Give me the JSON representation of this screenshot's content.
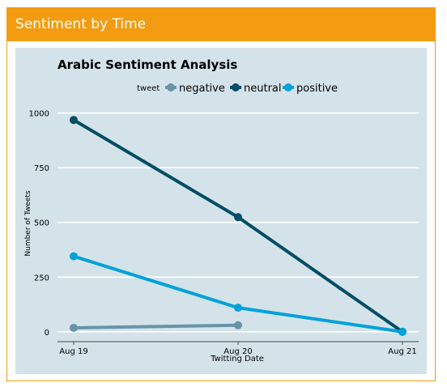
{
  "panel": {
    "title": "Sentiment by Time"
  },
  "colors": {
    "header_bg": "#f39c12",
    "plot_bg": "#d4e3ea",
    "grid": "#ffffff",
    "negative": "#6794a9",
    "neutral": "#014d64",
    "positive": "#01a2d9"
  },
  "chart_data": {
    "type": "line",
    "title": "Arabic Sentiment Analysis",
    "xlabel": "Twitting Date",
    "ylabel": "Number of Tweets",
    "legend_title": "tweet",
    "legend_position": "top",
    "grid": true,
    "categories": [
      "Aug 19",
      "Aug 20",
      "Aug 21"
    ],
    "y_ticks": [
      0,
      250,
      500,
      750,
      1000
    ],
    "ylim": [
      -45,
      1065
    ],
    "series": [
      {
        "name": "negative",
        "color": "#6794a9",
        "values": [
          18,
          30,
          null
        ]
      },
      {
        "name": "neutral",
        "color": "#014d64",
        "values": [
          968,
          524,
          0
        ]
      },
      {
        "name": "positive",
        "color": "#01a2d9",
        "values": [
          345,
          110,
          0
        ]
      }
    ]
  }
}
